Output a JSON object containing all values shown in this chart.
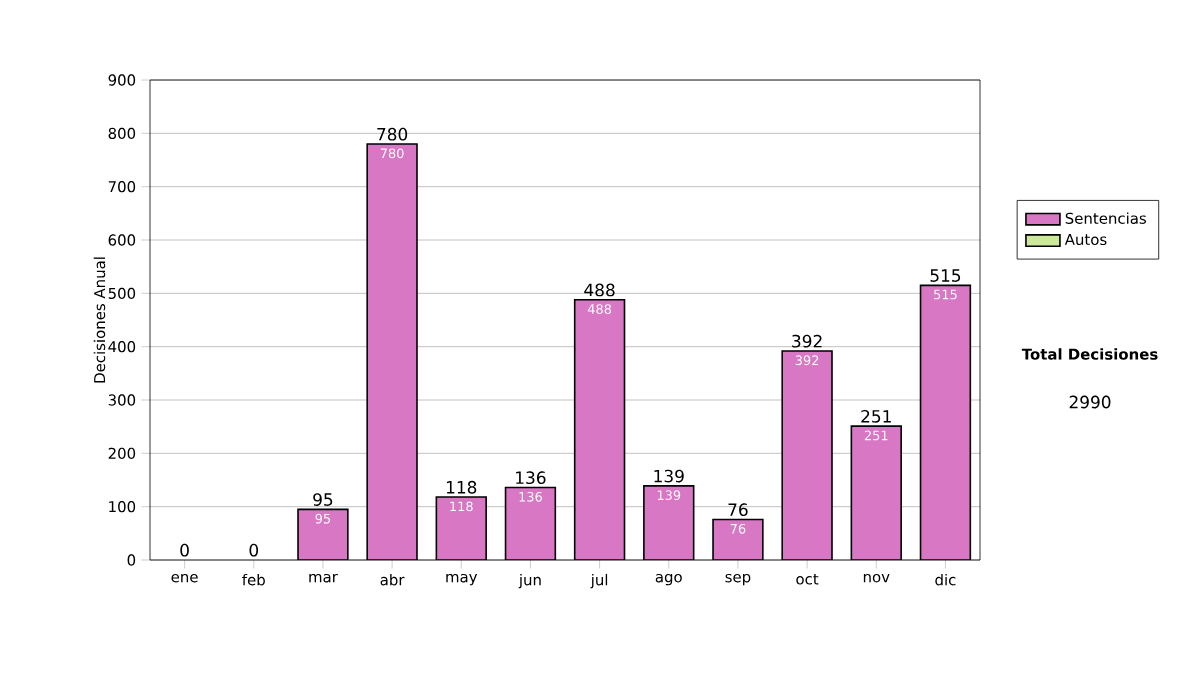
{
  "chart_data": {
    "type": "bar",
    "stacked": true,
    "ylabel": "Decisiones Anual",
    "categories": [
      "ene",
      "feb",
      "mar",
      "abr",
      "may",
      "jun",
      "jul",
      "ago",
      "sep",
      "oct",
      "nov",
      "dic"
    ],
    "series": [
      {
        "name": "Sentencias",
        "color": "#d877c4",
        "values": [
          0,
          0,
          95,
          780,
          118,
          136,
          488,
          139,
          76,
          392,
          251,
          515
        ],
        "value_labels": [
          null,
          null,
          "95",
          "780",
          "118",
          "136",
          "488",
          "139",
          "76",
          "392",
          "251",
          "515"
        ]
      },
      {
        "name": "Autos",
        "color": "#cce89a",
        "values": [
          0,
          0,
          0,
          0,
          0,
          0,
          0,
          0,
          0,
          0,
          0,
          0
        ]
      }
    ],
    "totals": [
      "0",
      "0",
      "95",
      "780",
      "118",
      "136",
      "488",
      "139",
      "76",
      "392",
      "251",
      "515"
    ],
    "ylim": [
      0,
      900
    ],
    "yticks": [
      0,
      100,
      200,
      300,
      400,
      500,
      600,
      700,
      800,
      900
    ],
    "grid": "y",
    "legend": "right",
    "annotations": [
      "Total Decisiones",
      "2990"
    ]
  }
}
